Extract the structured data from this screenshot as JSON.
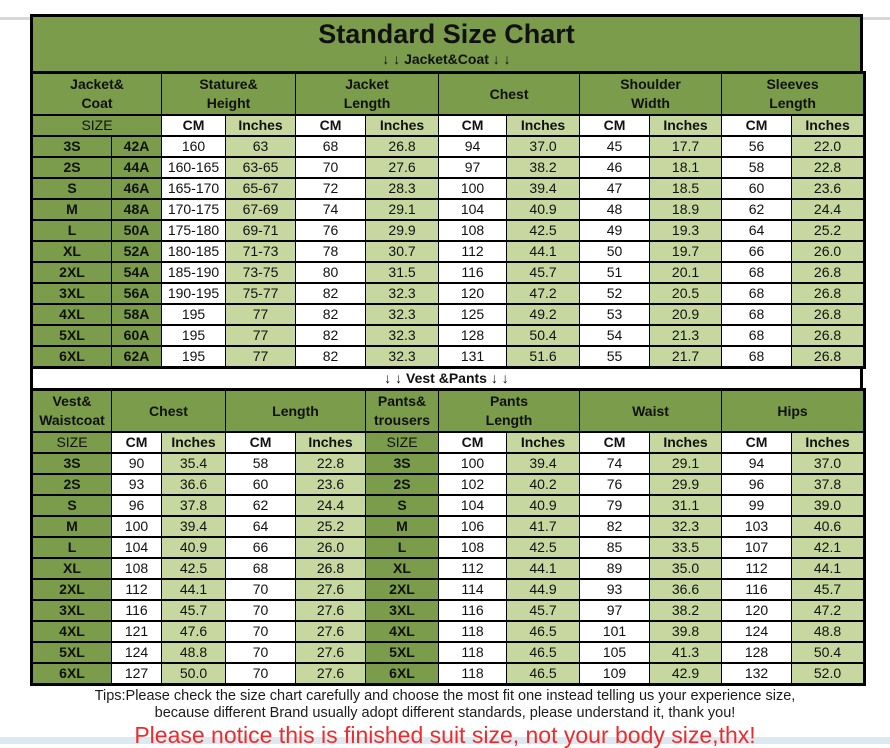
{
  "page": {
    "title": "Standard Size Chart",
    "jacket_section_arrows": "↓ ↓  Jacket&Coat ↓ ↓",
    "vest_section_arrows": "↓ ↓  Vest &Pants ↓ ↓",
    "tips_line1": "Tips:Please check the size chart carefully and choose the most fit one instead telling us your experience size,",
    "tips_line2": "because different Brand usually adopt different standards, please understand it, thank you!",
    "notice": "Please notice this is finished suit size, not your body size,thx!"
  },
  "colors": {
    "header_green": "#7b9c4b",
    "light_green": "#c6d89f",
    "cell_white": "#ffffff",
    "border_black": "#000000",
    "notice_red": "#ee2b2b"
  },
  "jacket_table": {
    "column_groups": [
      {
        "lines": [
          "Jacket&",
          "Coat"
        ],
        "span": 2
      },
      {
        "lines": [
          "Stature&",
          "Height"
        ],
        "span": 2
      },
      {
        "lines": [
          "Jacket",
          "Length"
        ],
        "span": 2
      },
      {
        "lines": [
          "Chest"
        ],
        "span": 2
      },
      {
        "lines": [
          "Shoulder",
          "Width"
        ],
        "span": 2
      },
      {
        "lines": [
          "Sleeves",
          "Length"
        ],
        "span": 2
      }
    ],
    "unit_row": [
      {
        "label": "SIZE",
        "span": 2,
        "style": "green"
      },
      {
        "label": "CM",
        "span": 1,
        "style": "white"
      },
      {
        "label": "Inches",
        "span": 1,
        "style": "light"
      },
      {
        "label": "CM",
        "span": 1,
        "style": "white"
      },
      {
        "label": "Inches",
        "span": 1,
        "style": "light"
      },
      {
        "label": "CM",
        "span": 1,
        "style": "white"
      },
      {
        "label": "Inches",
        "span": 1,
        "style": "light"
      },
      {
        "label": "CM",
        "span": 1,
        "style": "white"
      },
      {
        "label": "Inches",
        "span": 1,
        "style": "light"
      },
      {
        "label": "CM",
        "span": 1,
        "style": "white"
      },
      {
        "label": "Inches",
        "span": 1,
        "style": "light"
      }
    ],
    "column_styles": [
      "green-bold",
      "green-bold",
      "white",
      "light",
      "white",
      "light",
      "white",
      "light",
      "white",
      "light",
      "white",
      "light"
    ],
    "rows": [
      [
        "3S",
        "42A",
        "160",
        "63",
        "68",
        "26.8",
        "94",
        "37.0",
        "45",
        "17.7",
        "56",
        "22.0"
      ],
      [
        "2S",
        "44A",
        "160-165",
        "63-65",
        "70",
        "27.6",
        "97",
        "38.2",
        "46",
        "18.1",
        "58",
        "22.8"
      ],
      [
        "S",
        "46A",
        "165-170",
        "65-67",
        "72",
        "28.3",
        "100",
        "39.4",
        "47",
        "18.5",
        "60",
        "23.6"
      ],
      [
        "M",
        "48A",
        "170-175",
        "67-69",
        "74",
        "29.1",
        "104",
        "40.9",
        "48",
        "18.9",
        "62",
        "24.4"
      ],
      [
        "L",
        "50A",
        "175-180",
        "69-71",
        "76",
        "29.9",
        "108",
        "42.5",
        "49",
        "19.3",
        "64",
        "25.2"
      ],
      [
        "XL",
        "52A",
        "180-185",
        "71-73",
        "78",
        "30.7",
        "112",
        "44.1",
        "50",
        "19.7",
        "66",
        "26.0"
      ],
      [
        "2XL",
        "54A",
        "185-190",
        "73-75",
        "80",
        "31.5",
        "116",
        "45.7",
        "51",
        "20.1",
        "68",
        "26.8"
      ],
      [
        "3XL",
        "56A",
        "190-195",
        "75-77",
        "82",
        "32.3",
        "120",
        "47.2",
        "52",
        "20.5",
        "68",
        "26.8"
      ],
      [
        "4XL",
        "58A",
        "195",
        "77",
        "82",
        "32.3",
        "125",
        "49.2",
        "53",
        "20.9",
        "68",
        "26.8"
      ],
      [
        "5XL",
        "60A",
        "195",
        "77",
        "82",
        "32.3",
        "128",
        "50.4",
        "54",
        "21.3",
        "68",
        "26.8"
      ],
      [
        "6XL",
        "62A",
        "195",
        "77",
        "82",
        "32.3",
        "131",
        "51.6",
        "55",
        "21.7",
        "68",
        "26.8"
      ]
    ]
  },
  "vest_table": {
    "column_groups": [
      {
        "lines": [
          "Vest&",
          "Waistcoat"
        ],
        "span": 1
      },
      {
        "lines": [
          "Chest"
        ],
        "span": 2
      },
      {
        "lines": [
          "Length"
        ],
        "span": 2
      },
      {
        "lines": [
          "Pants&",
          "trousers"
        ],
        "span": 1
      },
      {
        "lines": [
          "Pants",
          "Length"
        ],
        "span": 2
      },
      {
        "lines": [
          "Waist"
        ],
        "span": 2
      },
      {
        "lines": [
          "Hips"
        ],
        "span": 2
      }
    ],
    "unit_row": [
      {
        "label": "SIZE",
        "span": 1,
        "style": "green"
      },
      {
        "label": "CM",
        "span": 1,
        "style": "white"
      },
      {
        "label": "Inches",
        "span": 1,
        "style": "light"
      },
      {
        "label": "CM",
        "span": 1,
        "style": "white"
      },
      {
        "label": "Inches",
        "span": 1,
        "style": "light"
      },
      {
        "label": "SIZE",
        "span": 1,
        "style": "green"
      },
      {
        "label": "CM",
        "span": 1,
        "style": "white"
      },
      {
        "label": "Inches",
        "span": 1,
        "style": "light"
      },
      {
        "label": "CM",
        "span": 1,
        "style": "white"
      },
      {
        "label": "Inches",
        "span": 1,
        "style": "light"
      },
      {
        "label": "CM",
        "span": 1,
        "style": "white"
      },
      {
        "label": "Inches",
        "span": 1,
        "style": "light"
      }
    ],
    "column_styles": [
      "green-bold",
      "white",
      "light",
      "white",
      "light",
      "green-bold",
      "white",
      "light",
      "white",
      "light",
      "white",
      "light"
    ],
    "rows": [
      [
        "3S",
        "90",
        "35.4",
        "58",
        "22.8",
        "3S",
        "100",
        "39.4",
        "74",
        "29.1",
        "94",
        "37.0"
      ],
      [
        "2S",
        "93",
        "36.6",
        "60",
        "23.6",
        "2S",
        "102",
        "40.2",
        "76",
        "29.9",
        "96",
        "37.8"
      ],
      [
        "S",
        "96",
        "37.8",
        "62",
        "24.4",
        "S",
        "104",
        "40.9",
        "79",
        "31.1",
        "99",
        "39.0"
      ],
      [
        "M",
        "100",
        "39.4",
        "64",
        "25.2",
        "M",
        "106",
        "41.7",
        "82",
        "32.3",
        "103",
        "40.6"
      ],
      [
        "L",
        "104",
        "40.9",
        "66",
        "26.0",
        "L",
        "108",
        "42.5",
        "85",
        "33.5",
        "107",
        "42.1"
      ],
      [
        "XL",
        "108",
        "42.5",
        "68",
        "26.8",
        "XL",
        "112",
        "44.1",
        "89",
        "35.0",
        "112",
        "44.1"
      ],
      [
        "2XL",
        "112",
        "44.1",
        "70",
        "27.6",
        "2XL",
        "114",
        "44.9",
        "93",
        "36.6",
        "116",
        "45.7"
      ],
      [
        "3XL",
        "116",
        "45.7",
        "70",
        "27.6",
        "3XL",
        "116",
        "45.7",
        "97",
        "38.2",
        "120",
        "47.2"
      ],
      [
        "4XL",
        "121",
        "47.6",
        "70",
        "27.6",
        "4XL",
        "118",
        "46.5",
        "101",
        "39.8",
        "124",
        "48.8"
      ],
      [
        "5XL",
        "124",
        "48.8",
        "70",
        "27.6",
        "5XL",
        "118",
        "46.5",
        "105",
        "41.3",
        "128",
        "50.4"
      ],
      [
        "6XL",
        "127",
        "50.0",
        "70",
        "27.6",
        "6XL",
        "118",
        "46.5",
        "109",
        "42.9",
        "132",
        "52.0"
      ]
    ]
  }
}
